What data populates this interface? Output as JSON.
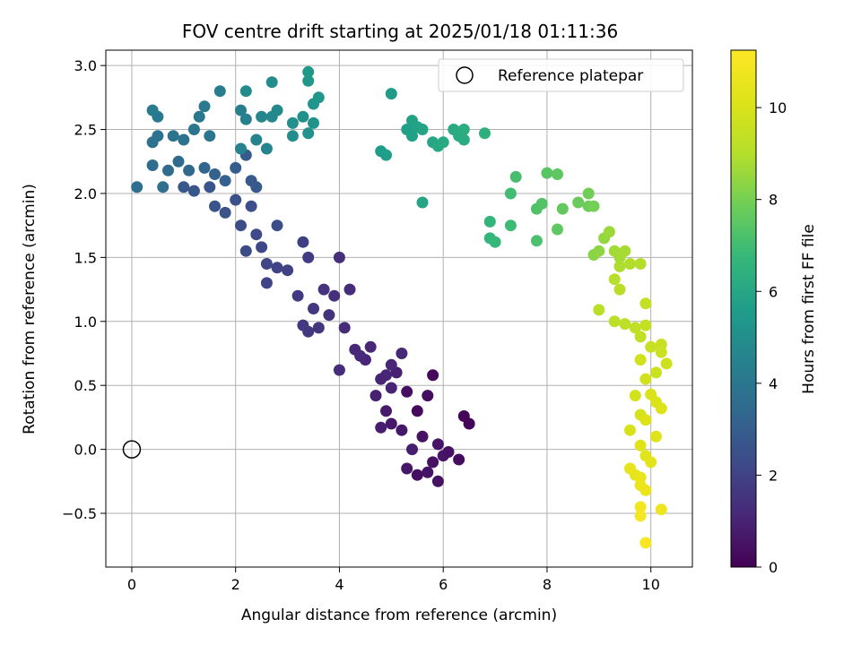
{
  "chart_data": {
    "type": "scatter",
    "title": "FOV centre drift starting at 2025/01/18 01:11:36",
    "xlabel": "Angular distance from reference (arcmin)",
    "ylabel": "Rotation from reference (arcmin)",
    "xlim": [
      -0.5,
      10.8
    ],
    "ylim": [
      -0.92,
      3.12
    ],
    "xticks": [
      0,
      2,
      4,
      6,
      8,
      10
    ],
    "xtick_labels": [
      "0",
      "2",
      "4",
      "6",
      "8",
      "10"
    ],
    "yticks": [
      -0.5,
      0.0,
      0.5,
      1.0,
      1.5,
      2.0,
      2.5,
      3.0
    ],
    "ytick_labels": [
      "−0.5",
      "0.0",
      "0.5",
      "1.0",
      "1.5",
      "2.0",
      "2.5",
      "3.0"
    ],
    "grid": true,
    "legend": {
      "position": "upper-right",
      "entries": [
        "Reference platepar"
      ]
    },
    "reference_point": {
      "x": 0,
      "y": 0,
      "label": "Reference platepar"
    },
    "colorbar": {
      "label": "Hours from first FF file",
      "range": [
        0,
        11.25
      ],
      "ticks": [
        0,
        2,
        4,
        6,
        8,
        10
      ],
      "tick_labels": [
        "0",
        "2",
        "4",
        "6",
        "8",
        "10"
      ],
      "colormap": "viridis"
    },
    "series": [
      {
        "fields": [
          "x",
          "y",
          "hours"
        ],
        "points": [
          [
            6.4,
            0.26,
            0.15
          ],
          [
            6.5,
            0.2,
            0.1
          ],
          [
            5.8,
            0.58,
            0.2
          ],
          [
            6.3,
            -0.08,
            0.3
          ],
          [
            5.5,
            0.3,
            0.25
          ],
          [
            5.7,
            0.42,
            0.35
          ],
          [
            5.3,
            0.45,
            0.4
          ],
          [
            5.6,
            0.1,
            0.5
          ],
          [
            5.9,
            0.04,
            0.55
          ],
          [
            5.8,
            -0.1,
            0.45
          ],
          [
            5.5,
            -0.2,
            0.4
          ],
          [
            5.9,
            -0.25,
            0.5
          ],
          [
            6.0,
            -0.05,
            0.6
          ],
          [
            5.2,
            0.15,
            0.65
          ],
          [
            5.0,
            0.2,
            0.7
          ],
          [
            4.9,
            0.3,
            0.75
          ],
          [
            5.4,
            0.0,
            0.8
          ],
          [
            5.7,
            -0.18,
            0.55
          ],
          [
            6.1,
            -0.02,
            0.45
          ],
          [
            5.3,
            -0.15,
            0.6
          ],
          [
            4.8,
            0.17,
            0.85
          ],
          [
            5.1,
            0.6,
            0.9
          ],
          [
            4.7,
            0.42,
            0.95
          ],
          [
            5.0,
            0.48,
            1.0
          ],
          [
            4.8,
            0.55,
            1.0
          ],
          [
            4.5,
            0.7,
            1.05
          ],
          [
            4.6,
            0.8,
            1.1
          ],
          [
            4.3,
            0.78,
            1.15
          ],
          [
            4.4,
            0.73,
            1.2
          ],
          [
            5.2,
            0.75,
            1.15
          ],
          [
            5.0,
            0.66,
            1.1
          ],
          [
            4.9,
            0.58,
            1.05
          ],
          [
            4.1,
            0.95,
            1.25
          ],
          [
            4.2,
            1.25,
            1.3
          ],
          [
            4.0,
            1.5,
            1.35
          ],
          [
            3.9,
            1.2,
            1.4
          ],
          [
            3.8,
            1.05,
            1.45
          ],
          [
            3.7,
            1.25,
            1.5
          ],
          [
            3.6,
            0.95,
            1.55
          ],
          [
            3.5,
            1.1,
            1.6
          ],
          [
            4.0,
            0.62,
            1.3
          ],
          [
            3.4,
            0.92,
            1.65
          ],
          [
            3.3,
            0.97,
            1.7
          ],
          [
            3.2,
            1.2,
            1.75
          ],
          [
            3.4,
            1.5,
            1.8
          ],
          [
            3.3,
            1.62,
            1.9
          ],
          [
            3.0,
            1.4,
            2.0
          ],
          [
            2.8,
            1.42,
            2.05
          ],
          [
            2.6,
            1.3,
            2.1
          ],
          [
            2.6,
            1.45,
            2.15
          ],
          [
            2.5,
            1.58,
            2.2
          ],
          [
            2.4,
            1.68,
            2.25
          ],
          [
            2.2,
            1.55,
            2.3
          ],
          [
            2.1,
            1.75,
            2.35
          ],
          [
            2.8,
            1.75,
            2.4
          ],
          [
            2.3,
            1.9,
            2.45
          ],
          [
            2.0,
            1.95,
            2.5
          ],
          [
            1.8,
            1.85,
            2.55
          ],
          [
            1.6,
            1.9,
            2.6
          ],
          [
            1.5,
            2.05,
            2.65
          ],
          [
            1.2,
            2.02,
            2.7
          ],
          [
            1.0,
            2.05,
            2.75
          ],
          [
            2.3,
            2.1,
            2.8
          ],
          [
            2.4,
            2.05,
            2.85
          ],
          [
            2.2,
            2.3,
            2.9
          ],
          [
            2.0,
            2.2,
            3.0
          ],
          [
            1.8,
            2.1,
            3.1
          ],
          [
            1.6,
            2.15,
            3.2
          ],
          [
            1.4,
            2.2,
            3.3
          ],
          [
            1.1,
            2.18,
            3.4
          ],
          [
            0.9,
            2.25,
            3.5
          ],
          [
            0.7,
            2.18,
            3.55
          ],
          [
            0.4,
            2.22,
            3.6
          ],
          [
            0.1,
            2.05,
            3.65
          ],
          [
            0.6,
            2.05,
            3.7
          ],
          [
            0.4,
            2.4,
            3.75
          ],
          [
            0.5,
            2.45,
            3.8
          ],
          [
            0.8,
            2.45,
            3.85
          ],
          [
            1.0,
            2.42,
            3.9
          ],
          [
            1.2,
            2.5,
            3.95
          ],
          [
            1.5,
            2.45,
            4.0
          ],
          [
            1.3,
            2.6,
            4.05
          ],
          [
            1.4,
            2.68,
            4.1
          ],
          [
            0.5,
            2.6,
            4.15
          ],
          [
            0.4,
            2.65,
            4.2
          ],
          [
            1.7,
            2.8,
            4.3
          ],
          [
            2.1,
            2.65,
            4.35
          ],
          [
            2.2,
            2.58,
            4.4
          ],
          [
            2.1,
            2.35,
            4.5
          ],
          [
            2.4,
            2.42,
            4.55
          ],
          [
            2.6,
            2.35,
            4.6
          ],
          [
            2.5,
            2.6,
            4.7
          ],
          [
            2.7,
            2.6,
            4.75
          ],
          [
            2.8,
            2.65,
            4.8
          ],
          [
            2.2,
            2.8,
            4.85
          ],
          [
            2.7,
            2.87,
            4.9
          ],
          [
            3.1,
            2.45,
            5.0
          ],
          [
            3.1,
            2.55,
            5.05
          ],
          [
            3.3,
            2.6,
            5.1
          ],
          [
            3.4,
            2.47,
            5.15
          ],
          [
            3.5,
            2.55,
            5.2
          ],
          [
            3.5,
            2.7,
            5.25
          ],
          [
            3.6,
            2.75,
            5.3
          ],
          [
            3.4,
            2.88,
            5.35
          ],
          [
            3.4,
            2.95,
            5.4
          ],
          [
            5.0,
            2.78,
            5.5
          ],
          [
            4.8,
            2.33,
            5.6
          ],
          [
            4.9,
            2.3,
            5.65
          ],
          [
            5.3,
            2.5,
            5.7
          ],
          [
            5.4,
            2.45,
            5.75
          ],
          [
            5.5,
            2.52,
            5.8
          ],
          [
            5.4,
            2.57,
            5.85
          ],
          [
            5.6,
            2.5,
            5.9
          ],
          [
            5.6,
            1.93,
            5.95
          ],
          [
            5.8,
            2.4,
            6.0
          ],
          [
            5.9,
            2.37,
            6.05
          ],
          [
            6.0,
            2.4,
            6.1
          ],
          [
            6.2,
            2.5,
            6.15
          ],
          [
            6.3,
            2.45,
            6.2
          ],
          [
            6.4,
            2.42,
            6.25
          ],
          [
            6.4,
            2.5,
            6.3
          ],
          [
            6.8,
            2.47,
            6.4
          ],
          [
            6.9,
            1.78,
            6.6
          ],
          [
            6.9,
            1.65,
            6.7
          ],
          [
            7.0,
            1.62,
            6.75
          ],
          [
            7.3,
            1.75,
            6.9
          ],
          [
            7.3,
            2.0,
            7.0
          ],
          [
            7.4,
            2.13,
            7.1
          ],
          [
            7.8,
            1.63,
            7.2
          ],
          [
            7.8,
            1.88,
            7.3
          ],
          [
            7.9,
            1.92,
            7.35
          ],
          [
            8.0,
            2.16,
            7.45
          ],
          [
            8.2,
            2.15,
            7.55
          ],
          [
            8.2,
            1.72,
            7.6
          ],
          [
            8.3,
            1.88,
            7.65
          ],
          [
            8.6,
            1.93,
            7.75
          ],
          [
            8.8,
            1.9,
            7.85
          ],
          [
            8.8,
            2.0,
            7.9
          ],
          [
            8.9,
            1.9,
            7.95
          ],
          [
            8.9,
            1.52,
            8.3
          ],
          [
            9.0,
            1.55,
            8.4
          ],
          [
            9.1,
            1.65,
            8.5
          ],
          [
            9.2,
            1.7,
            8.6
          ],
          [
            9.3,
            1.55,
            8.7
          ],
          [
            9.4,
            1.5,
            8.75
          ],
          [
            9.5,
            1.55,
            8.8
          ],
          [
            9.4,
            1.43,
            8.9
          ],
          [
            9.6,
            1.45,
            8.95
          ],
          [
            9.8,
            1.45,
            9.0
          ],
          [
            9.3,
            1.33,
            9.05
          ],
          [
            9.4,
            1.25,
            9.1
          ],
          [
            9.0,
            1.09,
            9.15
          ],
          [
            9.3,
            1.0,
            9.2
          ],
          [
            9.5,
            0.98,
            9.25
          ],
          [
            9.7,
            0.95,
            9.3
          ],
          [
            9.8,
            0.88,
            9.35
          ],
          [
            9.9,
            1.14,
            9.4
          ],
          [
            9.9,
            0.97,
            9.45
          ],
          [
            10.0,
            0.8,
            9.5
          ],
          [
            10.2,
            0.82,
            9.55
          ],
          [
            10.2,
            0.76,
            9.6
          ],
          [
            10.1,
            0.6,
            9.65
          ],
          [
            10.3,
            0.67,
            9.7
          ],
          [
            9.8,
            0.7,
            9.75
          ],
          [
            9.9,
            0.55,
            9.8
          ],
          [
            9.7,
            0.42,
            9.85
          ],
          [
            9.8,
            0.27,
            9.9
          ],
          [
            9.6,
            0.15,
            9.95
          ],
          [
            10.0,
            0.43,
            10.0
          ],
          [
            10.1,
            0.37,
            10.05
          ],
          [
            10.2,
            0.32,
            10.1
          ],
          [
            9.9,
            0.23,
            10.15
          ],
          [
            10.1,
            0.1,
            10.2
          ],
          [
            9.8,
            0.03,
            10.25
          ],
          [
            9.9,
            -0.05,
            10.3
          ],
          [
            10.0,
            -0.1,
            10.35
          ],
          [
            9.7,
            -0.2,
            10.45
          ],
          [
            9.6,
            -0.15,
            10.5
          ],
          [
            9.8,
            -0.22,
            10.55
          ],
          [
            9.8,
            -0.28,
            10.6
          ],
          [
            9.9,
            -0.32,
            10.65
          ],
          [
            10.2,
            -0.47,
            10.75
          ],
          [
            9.8,
            -0.45,
            10.85
          ],
          [
            9.8,
            -0.52,
            10.95
          ],
          [
            9.9,
            -0.73,
            11.1
          ]
        ]
      }
    ]
  }
}
